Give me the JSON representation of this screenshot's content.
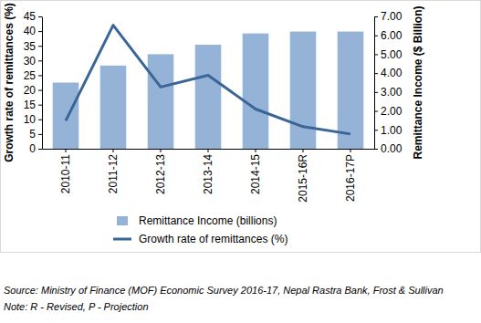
{
  "chart_data": {
    "type": "bar",
    "categories": [
      "2010-11",
      "2011-12",
      "2012-13",
      "2013-14",
      "2014-15",
      "2015-16R",
      "2016-17P"
    ],
    "series": [
      {
        "name": "Remittance Income (billions)",
        "type": "bar",
        "axis": "y2",
        "color": "#95b3d7",
        "values": [
          3.5,
          4.4,
          5.0,
          5.5,
          6.1,
          6.2,
          6.2
        ]
      },
      {
        "name": "Growth rate of remittances (%)",
        "type": "line",
        "color": "#3a6597",
        "values": [
          9.5,
          42,
          21,
          25,
          13.5,
          7.5,
          5
        ]
      }
    ],
    "y_label": "Growth rate of remittances (%)",
    "y2_label": "Remittance Income ($ Billion)",
    "ylim": [
      0,
      45
    ],
    "yticks": [
      0,
      5,
      10,
      15,
      20,
      25,
      30,
      35,
      40,
      45
    ],
    "y2lim": [
      0,
      7
    ],
    "y2ticks": [
      {
        "value": 0,
        "label": "0.00"
      },
      {
        "value": 1,
        "label": "1.00"
      },
      {
        "value": 2,
        "label": "2.00"
      },
      {
        "value": 3,
        "label": "3.00"
      },
      {
        "value": 4,
        "label": "4.00"
      },
      {
        "value": 5,
        "label": "5.00"
      },
      {
        "value": 6,
        "label": "6.00"
      },
      {
        "value": 7,
        "label": "7.00"
      }
    ],
    "legend": "bottom",
    "annotations": [
      "Source: Ministry of Finance (MOF) Economic Survey 2016-17, Nepal Rastra Bank, Frost & Sullivan",
      "Note: R - Revised, P - Projection"
    ]
  }
}
